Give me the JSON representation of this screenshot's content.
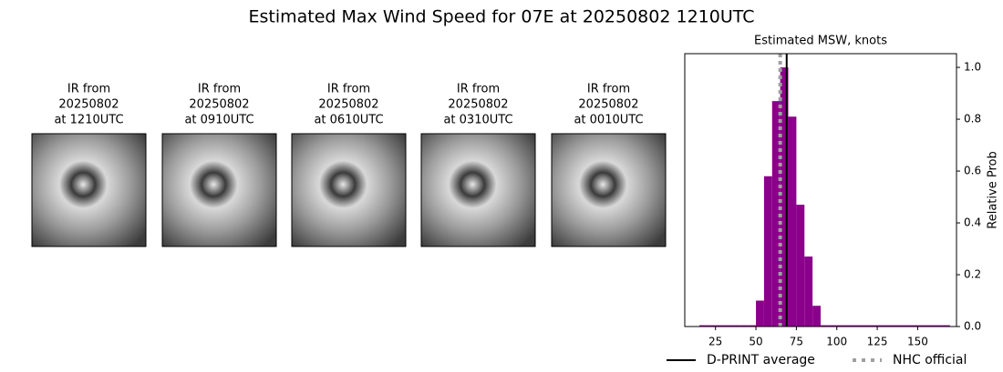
{
  "title": "Estimated Max Wind Speed for 07E at 20250802 1210UTC",
  "panels": [
    {
      "lines": [
        "IR from",
        "20250802",
        "at 1210UTC"
      ]
    },
    {
      "lines": [
        "IR from",
        "20250802",
        "at 0910UTC"
      ]
    },
    {
      "lines": [
        "IR from",
        "20250802",
        "at 0610UTC"
      ]
    },
    {
      "lines": [
        "IR from",
        "20250802",
        "at 0310UTC"
      ]
    },
    {
      "lines": [
        "IR from",
        "20250802",
        "at 0010UTC"
      ]
    }
  ],
  "chart_data": {
    "type": "histogram",
    "title": "Estimated MSW, knots",
    "y_label": "Relative Prob",
    "bins": [
      15,
      20,
      25,
      30,
      35,
      40,
      45,
      50,
      55,
      60,
      65,
      70,
      75,
      80,
      85,
      90,
      95,
      100,
      105,
      110,
      115,
      120,
      125,
      130,
      135,
      140,
      145,
      150,
      155,
      160,
      165,
      170
    ],
    "values": [
      0.005,
      0.005,
      0.005,
      0.005,
      0.005,
      0.005,
      0.005,
      0.1,
      0.58,
      0.87,
      1.0,
      0.81,
      0.47,
      0.27,
      0.08,
      0.005,
      0.005,
      0.005,
      0.005,
      0.005,
      0.005,
      0.005,
      0.005,
      0.005,
      0.005,
      0.005,
      0.005,
      0.005,
      0.005,
      0.005,
      0.005
    ],
    "color": "#8b008b",
    "xlim": [
      6,
      174
    ],
    "xticks": [
      25,
      50,
      75,
      100,
      125,
      150
    ],
    "ylim": [
      0,
      1.053
    ],
    "yticks": [
      {
        "value": 0,
        "label": "0.0"
      },
      0.2,
      0.4,
      0.6,
      0.8,
      {
        "value": 1,
        "label": "1.0"
      }
    ],
    "y_axis_side": "right",
    "grid": false,
    "lines": [
      {
        "name": "D-PRINT average",
        "x": 69,
        "color": "#000000",
        "style": "solid"
      },
      {
        "name": "NHC official",
        "x": 65,
        "color": "#a0a0a0",
        "style": "dotted"
      }
    ],
    "legend": "bottom"
  }
}
